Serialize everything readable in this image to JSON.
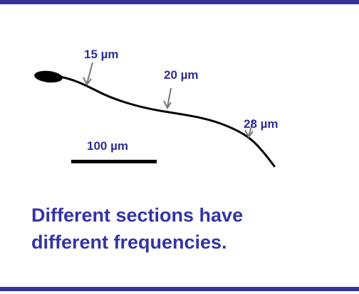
{
  "annotations": {
    "label_1": "15 µm",
    "label_2": "20 µm",
    "label_3": "28 µm",
    "scale_bar": "100 µm"
  },
  "caption": {
    "line_1": "Different sections have",
    "line_2": "different frequencies."
  }
}
